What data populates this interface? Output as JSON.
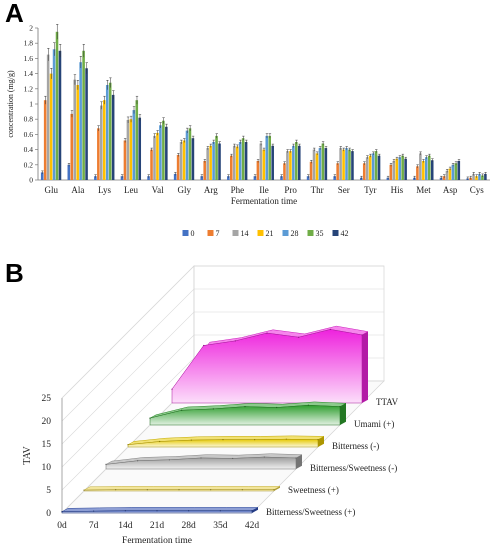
{
  "panels": {
    "a_label": "A",
    "b_label": "B"
  },
  "chart_data": [
    {
      "type": "bar",
      "panel": "A",
      "xlabel": "Fermentation time",
      "ylabel": "concentration (mg/g)",
      "ylim": [
        0,
        2
      ],
      "yticks": [
        "0",
        "0.2",
        "0.4",
        "0.6",
        "0.8",
        "1",
        "1.2",
        "1.4",
        "1.6",
        "1.8",
        "2"
      ],
      "grid": false,
      "legend_position": "bottom",
      "categories": [
        "Glu",
        "Ala",
        "Lys",
        "Leu",
        "Val",
        "Gly",
        "Arg",
        "Phe",
        "Ile",
        "Pro",
        "Thr",
        "Ser",
        "Tyr",
        "His",
        "Met",
        "Asp",
        "Cys"
      ],
      "series": [
        {
          "name": "0",
          "color": "#4472c4",
          "values": [
            0.1,
            0.2,
            0.05,
            0.05,
            0.05,
            0.08,
            0.05,
            0.05,
            0.05,
            0.05,
            0.05,
            0.05,
            0.03,
            0.03,
            0.03,
            0.03,
            0.02
          ]
        },
        {
          "name": "7",
          "color": "#ed7d31",
          "values": [
            1.05,
            0.87,
            0.68,
            0.52,
            0.4,
            0.33,
            0.25,
            0.32,
            0.25,
            0.22,
            0.24,
            0.22,
            0.22,
            0.2,
            0.18,
            0.05,
            0.03
          ]
        },
        {
          "name": "14",
          "color": "#a5a5a5",
          "values": [
            1.65,
            1.32,
            0.98,
            0.79,
            0.58,
            0.5,
            0.42,
            0.45,
            0.48,
            0.38,
            0.4,
            0.42,
            0.3,
            0.25,
            0.35,
            0.12,
            0.08
          ]
        },
        {
          "name": "21",
          "color": "#ffc000",
          "values": [
            1.4,
            1.25,
            1.05,
            0.8,
            0.62,
            0.52,
            0.45,
            0.44,
            0.4,
            0.38,
            0.35,
            0.4,
            0.32,
            0.28,
            0.25,
            0.15,
            0.05
          ]
        },
        {
          "name": "28",
          "color": "#5b9bd5",
          "values": [
            1.72,
            1.55,
            1.25,
            0.92,
            0.72,
            0.65,
            0.5,
            0.5,
            0.58,
            0.45,
            0.42,
            0.42,
            0.35,
            0.3,
            0.3,
            0.2,
            0.08
          ]
        },
        {
          "name": "35",
          "color": "#70ad47",
          "values": [
            1.95,
            1.7,
            1.28,
            1.05,
            0.78,
            0.68,
            0.58,
            0.55,
            0.58,
            0.5,
            0.48,
            0.4,
            0.38,
            0.32,
            0.32,
            0.22,
            0.06
          ]
        },
        {
          "name": "42",
          "color": "#264478",
          "values": [
            1.7,
            1.47,
            1.12,
            0.82,
            0.7,
            0.55,
            0.48,
            0.5,
            0.45,
            0.45,
            0.42,
            0.38,
            0.32,
            0.28,
            0.26,
            0.25,
            0.08
          ]
        }
      ]
    },
    {
      "type": "area",
      "panel": "B",
      "xlabel": "Fermentation time",
      "ylabel": "TAV",
      "ylim": [
        0,
        25
      ],
      "yticks": [
        "0",
        "5",
        "10",
        "15",
        "20",
        "25"
      ],
      "categories": [
        "0d",
        "7d",
        "14d",
        "21d",
        "28d",
        "35d",
        "42d"
      ],
      "grid": true,
      "series": [
        {
          "name": "Bitterness/Sweetness (+)",
          "color": "#2f4fb0",
          "values": [
            0.3,
            0.4,
            0.5,
            0.5,
            0.5,
            0.5,
            0.5
          ]
        },
        {
          "name": "Sweetness (+)",
          "color": "#e8d04a",
          "values": [
            0.2,
            0.3,
            0.3,
            0.3,
            0.3,
            0.3,
            0.3
          ]
        },
        {
          "name": "Bitterness/Sweetness (-)",
          "color": "#9a9a9a",
          "values": [
            1.0,
            1.8,
            2.0,
            2.4,
            2.3,
            2.6,
            2.4
          ]
        },
        {
          "name": "Bitterness (-)",
          "color": "#e6c800",
          "values": [
            0.5,
            1.2,
            1.5,
            1.6,
            1.6,
            1.7,
            1.6
          ]
        },
        {
          "name": "Umami (+)",
          "color": "#2e9e2e",
          "values": [
            1.5,
            3.2,
            3.5,
            4.0,
            3.8,
            4.3,
            4.0
          ]
        },
        {
          "name": "TTAV",
          "color": "#ee22dd",
          "values": [
            3.0,
            12.5,
            13.5,
            15.2,
            14.3,
            16.0,
            14.8
          ]
        }
      ]
    }
  ]
}
